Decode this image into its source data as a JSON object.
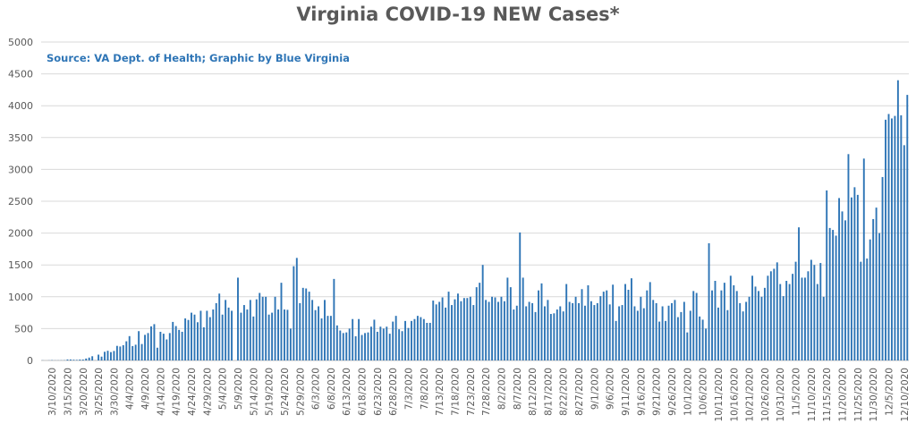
{
  "chart_data": {
    "type": "bar",
    "title": "Virginia COVID-19 NEW Cases*",
    "subtitle": "Source: VA Dept. of Health; Graphic by Blue Virginia",
    "xlabel": "",
    "ylabel": "",
    "ylim": [
      0,
      5000
    ],
    "ytick_values": [
      0,
      500,
      1000,
      1500,
      2000,
      2500,
      3000,
      3500,
      4000,
      4500,
      5000
    ],
    "ytick_labels": [
      "0",
      "500",
      "1000",
      "1500",
      "2000",
      "2500",
      "3000",
      "3500",
      "4000",
      "4500",
      "5000"
    ],
    "grid": true,
    "legend": "none",
    "start_date": "3/7/2020",
    "tick_every_days": 5,
    "tick_labels": [
      "3/10/2020",
      "3/15/2020",
      "3/20/2020",
      "3/25/2020",
      "3/30/2020",
      "4/4/2020",
      "4/9/2020",
      "4/14/2020",
      "4/19/2020",
      "4/24/2020",
      "4/29/2020",
      "5/4/2020",
      "5/9/2020",
      "5/14/2020",
      "5/19/2020",
      "5/24/2020",
      "5/29/2020",
      "6/3/2020",
      "6/8/2020",
      "6/13/2020",
      "6/18/2020",
      "6/23/2020",
      "6/28/2020",
      "7/3/2020",
      "7/8/2020",
      "7/13/2020",
      "7/18/2020",
      "7/23/2020",
      "7/28/2020",
      "8/2/2020",
      "8/7/2020",
      "8/12/2020",
      "8/17/2020",
      "8/22/2020",
      "8/27/2020",
      "9/1/2020",
      "9/6/2020",
      "9/11/2020",
      "9/16/2020",
      "9/21/2020",
      "9/26/2020",
      "10/1/2020",
      "10/6/2020",
      "10/11/2020",
      "10/16/2020",
      "10/21/2020",
      "10/26/2020",
      "10/31/2020",
      "11/5/2020",
      "11/10/2020",
      "11/15/2020",
      "11/20/2020",
      "11/25/2020",
      "11/30/2020",
      "12/5/2020",
      "12/10/2020"
    ],
    "bar_color": "#2e75b6",
    "values": [
      2,
      0,
      2,
      5,
      2,
      2,
      3,
      4,
      15,
      15,
      11,
      9,
      14,
      14,
      30,
      45,
      66,
      2,
      91,
      60,
      136,
      152,
      131,
      149,
      229,
      219,
      240,
      301,
      382,
      226,
      247,
      460,
      258,
      402,
      430,
      535,
      570,
      200,
      450,
      420,
      330,
      430,
      605,
      540,
      480,
      450,
      660,
      636,
      750,
      720,
      600,
      780,
      520,
      780,
      680,
      800,
      900,
      1050,
      720,
      950,
      830,
      780,
      0,
      1300,
      750,
      870,
      800,
      950,
      690,
      960,
      1060,
      1000,
      1000,
      720,
      750,
      1000,
      800,
      1220,
      800,
      795,
      500,
      1480,
      1610,
      900,
      1140,
      1130,
      1080,
      950,
      790,
      850,
      660,
      950,
      700,
      700,
      1280,
      550,
      470,
      430,
      440,
      500,
      650,
      380,
      650,
      400,
      430,
      440,
      530,
      640,
      450,
      530,
      500,
      530,
      420,
      610,
      700,
      490,
      460,
      620,
      510,
      620,
      650,
      700,
      680,
      650,
      590,
      590,
      940,
      880,
      920,
      990,
      830,
      1080,
      870,
      960,
      1050,
      930,
      980,
      980,
      1000,
      870,
      1150,
      1220,
      1500,
      950,
      920,
      1000,
      990,
      920,
      1000,
      930,
      1300,
      1150,
      800,
      860,
      2010,
      1300,
      850,
      920,
      900,
      760,
      1100,
      1210,
      850,
      950,
      730,
      740,
      800,
      850,
      770,
      1200,
      920,
      900,
      1000,
      900,
      1120,
      860,
      1180,
      930,
      870,
      900,
      1010,
      1080,
      1100,
      880,
      1190,
      620,
      850,
      870,
      1200,
      1110,
      1290,
      850,
      780,
      1000,
      820,
      1100,
      1230,
      950,
      900,
      610,
      850,
      620,
      860,
      900,
      950,
      680,
      760,
      920,
      440,
      780,
      1090,
      1060,
      690,
      640,
      500,
      1840,
      1100,
      1250,
      830,
      1100,
      1220,
      790,
      1330,
      1180,
      1090,
      900,
      770,
      920,
      1000,
      1330,
      1160,
      1090,
      1000,
      1140,
      1330,
      1400,
      1440,
      1540,
      1200,
      1010,
      1250,
      1200,
      1360,
      1550,
      2090,
      1300,
      1300,
      1400,
      1580,
      1500,
      1200,
      1530,
      1000,
      2670,
      2080,
      2050,
      1960,
      2550,
      2340,
      2200,
      3240,
      2560,
      2720,
      2600,
      1550,
      3170,
      1600,
      1900,
      2220,
      2400,
      2000,
      2880,
      3780,
      3870,
      3800,
      3840,
      4400,
      3850,
      3380,
      4170
    ]
  }
}
